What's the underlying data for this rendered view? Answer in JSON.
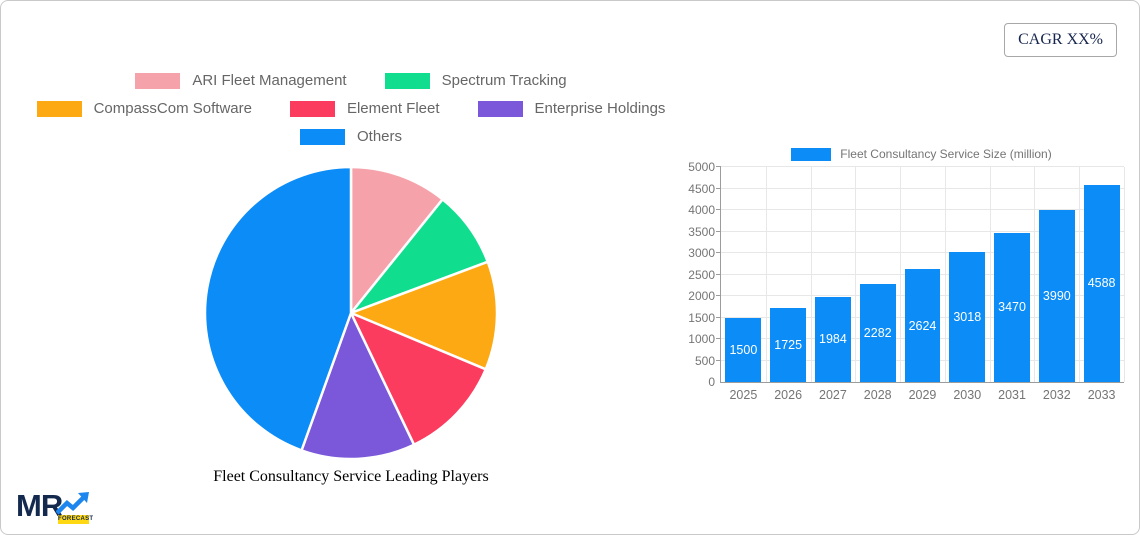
{
  "header": {
    "cagr_label": "CAGR XX%"
  },
  "logo": {
    "text": "MR",
    "badge": "FORECAST"
  },
  "chart_data": [
    {
      "type": "pie",
      "title": "Fleet Consultancy Service Leading Players",
      "labels": [
        "ARI Fleet Management",
        "Spectrum Tracking",
        "CompassCom Software",
        "Element Fleet",
        "Enterprise Holdings",
        "Others"
      ],
      "values_percent": [
        10.8,
        8.5,
        12.0,
        11.6,
        12.6,
        44.5
      ],
      "colors": [
        "#F5A2AA",
        "#10DE8E",
        "#FCA914",
        "#FB3C5E",
        "#7B58DA",
        "#0C8CF6"
      ],
      "slice_border_color": "#FFFFFF",
      "legend_position": "top",
      "legend_rows": [
        [
          0,
          1
        ],
        [
          2,
          3,
          4
        ],
        [
          5
        ]
      ],
      "start_angle_deg": 0
    },
    {
      "type": "bar",
      "legend_label": "Fleet Consultancy Service Size (million)",
      "categories": [
        "2025",
        "2026",
        "2027",
        "2028",
        "2029",
        "2030",
        "2031",
        "2032",
        "2033"
      ],
      "values": [
        1500,
        1725,
        1984,
        2282,
        2624,
        3018,
        3470,
        3990,
        4588
      ],
      "bar_color": "#0C8CF6",
      "value_label_color": "#FFFFFF",
      "ylim": [
        0,
        5000
      ],
      "ytick_step": 500,
      "grid": true,
      "legend_position": "top"
    }
  ]
}
